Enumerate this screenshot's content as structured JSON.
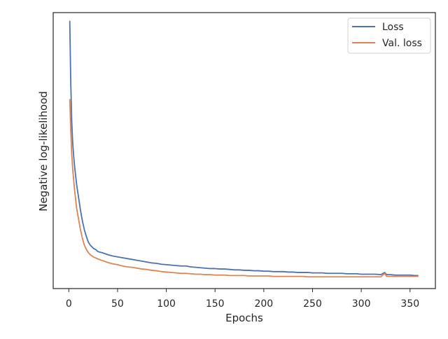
{
  "chart_data": {
    "type": "line",
    "title": "",
    "xlabel": "Epochs",
    "ylabel": "Negative log-likelihood",
    "xlim": [
      -16,
      376
    ],
    "ylim": [
      0.85,
      7.2
    ],
    "xticks": [
      0,
      50,
      100,
      150,
      200,
      250,
      300,
      350
    ],
    "yticks": [],
    "grid": false,
    "legend": {
      "placement": "top-right",
      "entries": [
        "Loss",
        "Val. loss"
      ]
    },
    "series": [
      {
        "name": "Loss",
        "color": "#4c72b0",
        "points": [
          [
            1,
            7.0
          ],
          [
            2,
            5.6
          ],
          [
            3,
            4.7
          ],
          [
            4,
            4.2
          ],
          [
            5,
            3.9
          ],
          [
            6,
            3.65
          ],
          [
            7,
            3.45
          ],
          [
            8,
            3.25
          ],
          [
            10,
            2.95
          ],
          [
            12,
            2.65
          ],
          [
            14,
            2.4
          ],
          [
            16,
            2.2
          ],
          [
            18,
            2.05
          ],
          [
            20,
            1.92
          ],
          [
            22,
            1.85
          ],
          [
            25,
            1.78
          ],
          [
            28,
            1.74
          ],
          [
            30,
            1.7
          ],
          [
            35,
            1.67
          ],
          [
            40,
            1.63
          ],
          [
            45,
            1.6
          ],
          [
            50,
            1.58
          ],
          [
            55,
            1.56
          ],
          [
            60,
            1.54
          ],
          [
            65,
            1.52
          ],
          [
            70,
            1.5
          ],
          [
            75,
            1.48
          ],
          [
            80,
            1.46
          ],
          [
            85,
            1.44
          ],
          [
            90,
            1.43
          ],
          [
            95,
            1.41
          ],
          [
            100,
            1.4
          ],
          [
            105,
            1.39
          ],
          [
            110,
            1.38
          ],
          [
            115,
            1.37
          ],
          [
            120,
            1.37
          ],
          [
            125,
            1.35
          ],
          [
            130,
            1.34
          ],
          [
            135,
            1.33
          ],
          [
            140,
            1.32
          ],
          [
            145,
            1.31
          ],
          [
            150,
            1.31
          ],
          [
            155,
            1.3
          ],
          [
            160,
            1.3
          ],
          [
            165,
            1.29
          ],
          [
            170,
            1.28
          ],
          [
            175,
            1.28
          ],
          [
            180,
            1.27
          ],
          [
            185,
            1.27
          ],
          [
            190,
            1.26
          ],
          [
            195,
            1.26
          ],
          [
            200,
            1.25
          ],
          [
            205,
            1.25
          ],
          [
            210,
            1.24
          ],
          [
            215,
            1.24
          ],
          [
            220,
            1.24
          ],
          [
            225,
            1.23
          ],
          [
            230,
            1.23
          ],
          [
            235,
            1.22
          ],
          [
            240,
            1.22
          ],
          [
            245,
            1.22
          ],
          [
            250,
            1.21
          ],
          [
            255,
            1.21
          ],
          [
            260,
            1.21
          ],
          [
            265,
            1.2
          ],
          [
            270,
            1.2
          ],
          [
            275,
            1.2
          ],
          [
            280,
            1.2
          ],
          [
            285,
            1.19
          ],
          [
            290,
            1.19
          ],
          [
            295,
            1.19
          ],
          [
            300,
            1.18
          ],
          [
            305,
            1.18
          ],
          [
            310,
            1.18
          ],
          [
            315,
            1.18
          ],
          [
            320,
            1.17
          ],
          [
            324,
            1.22
          ],
          [
            326,
            1.17
          ],
          [
            330,
            1.17
          ],
          [
            335,
            1.16
          ],
          [
            340,
            1.16
          ],
          [
            345,
            1.16
          ],
          [
            350,
            1.16
          ],
          [
            355,
            1.15
          ],
          [
            358,
            1.15
          ]
        ]
      },
      {
        "name": "Val. loss",
        "color": "#dd8452",
        "points": [
          [
            1,
            5.2
          ],
          [
            2,
            4.5
          ],
          [
            3,
            3.95
          ],
          [
            4,
            3.6
          ],
          [
            5,
            3.35
          ],
          [
            6,
            3.1
          ],
          [
            7,
            2.9
          ],
          [
            8,
            2.7
          ],
          [
            10,
            2.45
          ],
          [
            12,
            2.2
          ],
          [
            14,
            2.0
          ],
          [
            16,
            1.85
          ],
          [
            18,
            1.75
          ],
          [
            20,
            1.68
          ],
          [
            22,
            1.63
          ],
          [
            25,
            1.58
          ],
          [
            28,
            1.55
          ],
          [
            30,
            1.53
          ],
          [
            35,
            1.49
          ],
          [
            40,
            1.45
          ],
          [
            45,
            1.42
          ],
          [
            50,
            1.4
          ],
          [
            55,
            1.37
          ],
          [
            60,
            1.35
          ],
          [
            65,
            1.34
          ],
          [
            70,
            1.32
          ],
          [
            75,
            1.3
          ],
          [
            80,
            1.29
          ],
          [
            85,
            1.27
          ],
          [
            90,
            1.26
          ],
          [
            95,
            1.24
          ],
          [
            100,
            1.23
          ],
          [
            105,
            1.22
          ],
          [
            110,
            1.21
          ],
          [
            115,
            1.2
          ],
          [
            120,
            1.2
          ],
          [
            125,
            1.19
          ],
          [
            130,
            1.18
          ],
          [
            135,
            1.18
          ],
          [
            140,
            1.17
          ],
          [
            145,
            1.17
          ],
          [
            150,
            1.16
          ],
          [
            155,
            1.16
          ],
          [
            160,
            1.16
          ],
          [
            165,
            1.15
          ],
          [
            170,
            1.15
          ],
          [
            175,
            1.15
          ],
          [
            180,
            1.15
          ],
          [
            185,
            1.14
          ],
          [
            190,
            1.14
          ],
          [
            195,
            1.14
          ],
          [
            200,
            1.14
          ],
          [
            205,
            1.14
          ],
          [
            210,
            1.13
          ],
          [
            215,
            1.13
          ],
          [
            220,
            1.13
          ],
          [
            225,
            1.13
          ],
          [
            230,
            1.13
          ],
          [
            235,
            1.13
          ],
          [
            240,
            1.13
          ],
          [
            245,
            1.12
          ],
          [
            250,
            1.12
          ],
          [
            255,
            1.12
          ],
          [
            260,
            1.12
          ],
          [
            265,
            1.12
          ],
          [
            270,
            1.12
          ],
          [
            275,
            1.12
          ],
          [
            280,
            1.12
          ],
          [
            285,
            1.12
          ],
          [
            290,
            1.12
          ],
          [
            295,
            1.12
          ],
          [
            300,
            1.12
          ],
          [
            305,
            1.12
          ],
          [
            310,
            1.12
          ],
          [
            315,
            1.12
          ],
          [
            320,
            1.12
          ],
          [
            324,
            1.2
          ],
          [
            326,
            1.13
          ],
          [
            330,
            1.13
          ],
          [
            335,
            1.13
          ],
          [
            340,
            1.13
          ],
          [
            345,
            1.13
          ],
          [
            350,
            1.13
          ],
          [
            355,
            1.13
          ],
          [
            358,
            1.13
          ]
        ]
      }
    ]
  }
}
